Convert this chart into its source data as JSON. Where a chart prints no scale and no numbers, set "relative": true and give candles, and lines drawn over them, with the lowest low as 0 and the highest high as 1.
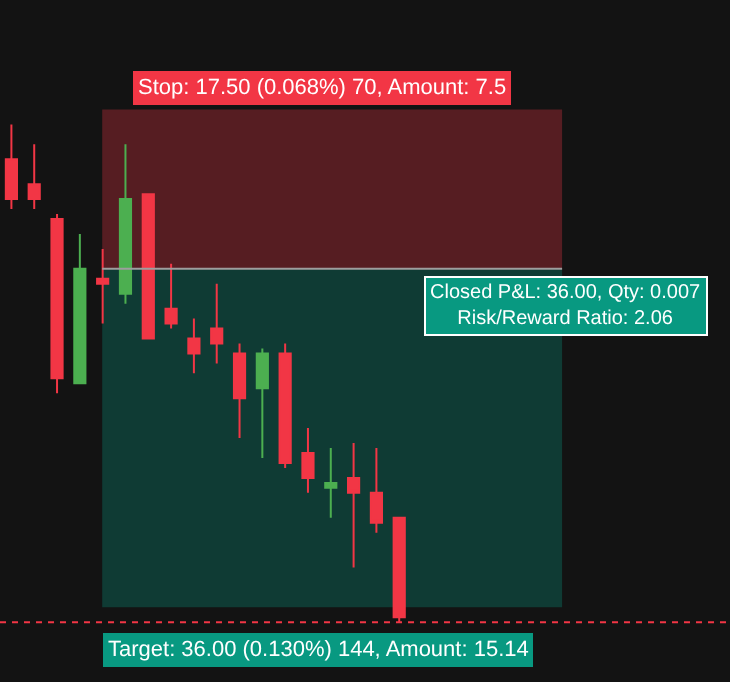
{
  "chart_data": {
    "type": "candlestick",
    "relative": true,
    "categories": [
      null,
      null,
      null,
      null,
      null,
      null,
      null,
      null,
      null,
      null,
      null,
      null,
      null,
      null,
      null,
      null,
      null,
      null
    ],
    "ohlc": [
      [
        0.93,
        1,
        0.83,
        0.85
      ],
      [
        0.88,
        0.96,
        0.83,
        0.85
      ],
      [
        0.81,
        0.82,
        0.46,
        0.49
      ],
      [
        0.48,
        0.78,
        0.48,
        0.71
      ],
      [
        0.69,
        0.75,
        0.6,
        0.68
      ],
      [
        0.66,
        0.96,
        0.64,
        0.85
      ],
      [
        0.86,
        0.86,
        0.57,
        0.57
      ],
      [
        0.63,
        0.72,
        0.59,
        0.6
      ],
      [
        0.57,
        0.61,
        0.5,
        0.54
      ],
      [
        0.59,
        0.68,
        0.52,
        0.56
      ],
      [
        0.54,
        0.56,
        0.37,
        0.45
      ],
      [
        0.47,
        0.55,
        0.33,
        0.54
      ],
      [
        0.54,
        0.56,
        0.31,
        0.32
      ],
      [
        0.34,
        0.39,
        0.26,
        0.29
      ],
      [
        0.27,
        0.35,
        0.21,
        0.28
      ],
      [
        0.29,
        0.36,
        0.11,
        0.26
      ],
      [
        0.26,
        0.35,
        0.18,
        0.2
      ],
      [
        0.21,
        0.21,
        0,
        0.01
      ]
    ],
    "colors": [
      "#f23645",
      "#f23645",
      "#f23645",
      "#4caf50",
      "#f23645",
      "#4caf50",
      "#f23645",
      "#f23645",
      "#f23645",
      "#f23645",
      "#f23645",
      "#4caf50",
      "#f23645",
      "#f23645",
      "#4caf50",
      "#f23645",
      "#f23645",
      "#f23645"
    ],
    "bands": [
      {
        "axis": "y",
        "from": 0.71,
        "to": 1.03,
        "label": "Stop: 17.50 (0.068%) 70, Amount: 7.5",
        "color": "#f23645"
      },
      {
        "axis": "y",
        "from": 0.03,
        "to": 0.71,
        "label": "Target: 36.00 (0.130%) 144, Amount: 15.14",
        "color": "#089981"
      }
    ],
    "ref_lines": [
      {
        "axis": "y",
        "value": 0.71,
        "color": "#9e9e9e",
        "line_style": "solid"
      },
      {
        "axis": "y",
        "value": 0,
        "color": "#f23645",
        "line_style": "dotted"
      }
    ],
    "annotations": [
      "Closed P&L: 36.00, Qty: 0.007\nRisk/Reward Ratio: 2.06"
    ]
  }
}
